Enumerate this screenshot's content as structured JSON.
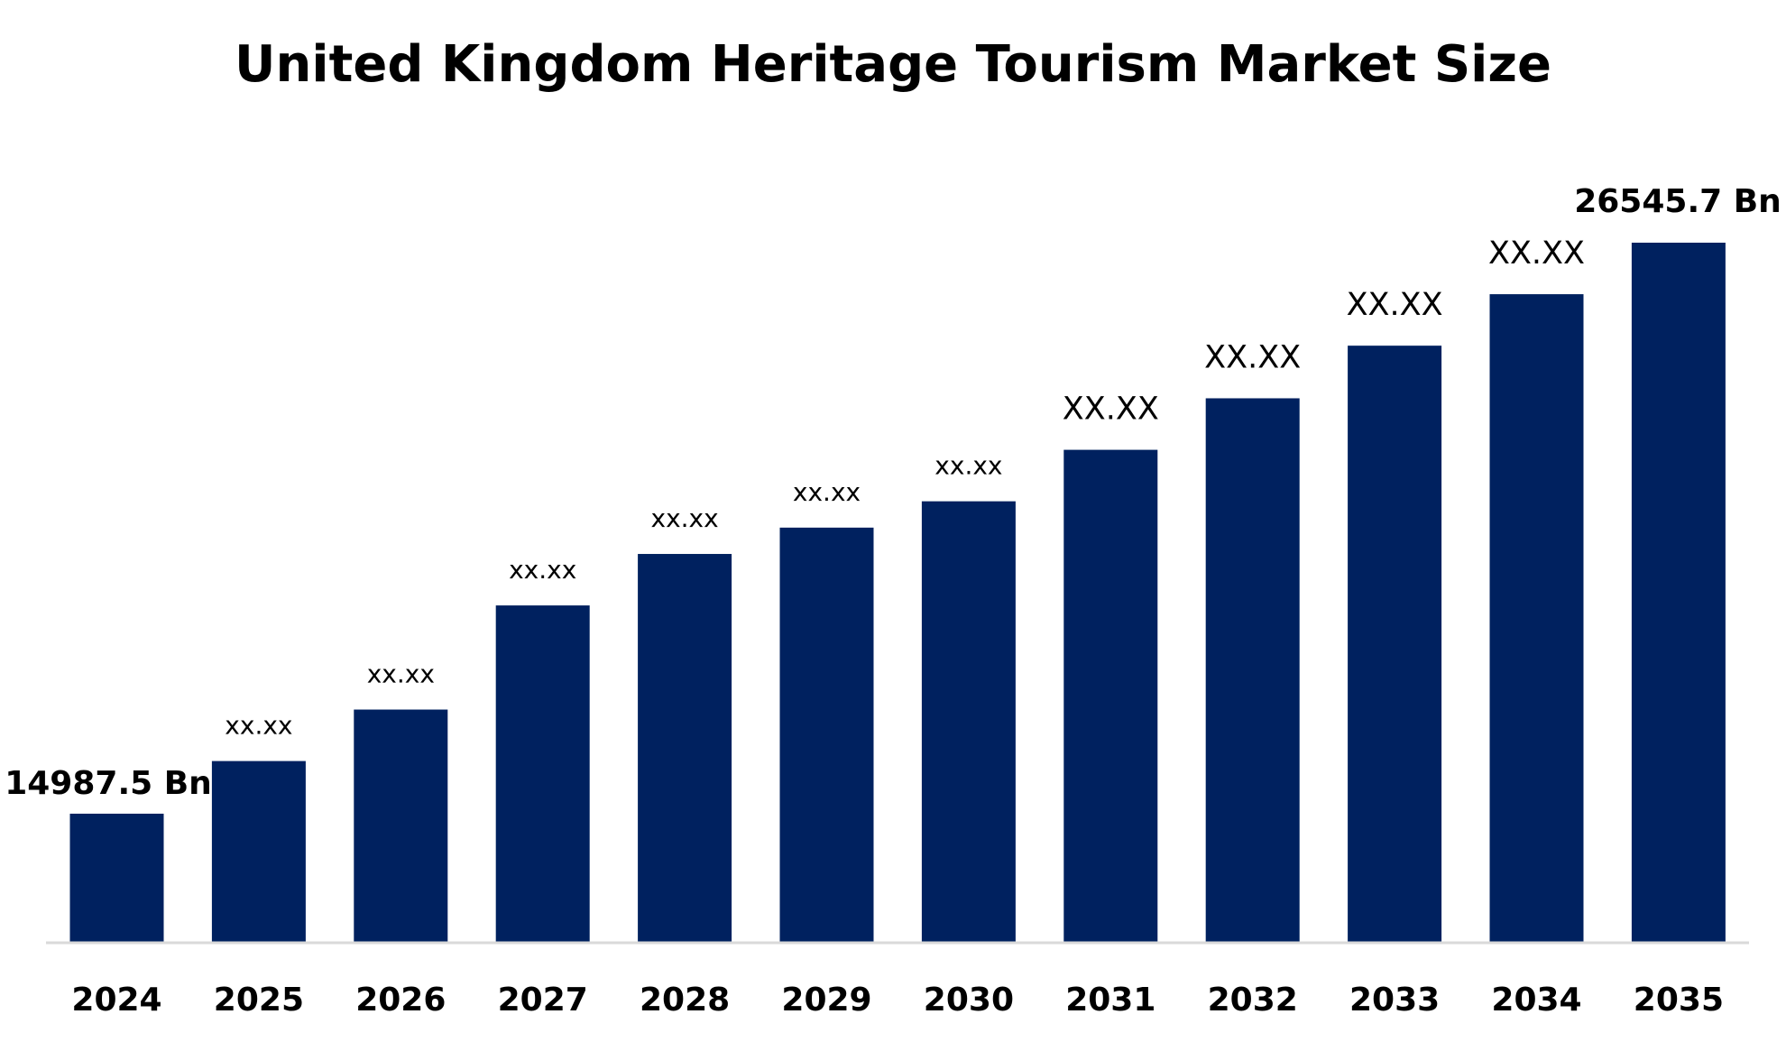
{
  "chart_data": {
    "type": "bar",
    "title": "United Kingdom Heritage Tourism Market Size",
    "xlabel": "",
    "ylabel": "",
    "categories": [
      "2024",
      "2025",
      "2026",
      "2027",
      "2028",
      "2029",
      "2030",
      "2031",
      "2032",
      "2033",
      "2034",
      "2035"
    ],
    "values": [
      14987.5,
      16053,
      17095,
      19203,
      20245,
      20778,
      21311,
      22353,
      23396,
      24461,
      25503,
      26545.7
    ],
    "data_labels": [
      "14987.5 Bn",
      "xx.xx",
      "xx.xx",
      "xx.xx",
      "xx.xx",
      "xx.xx",
      "xx.xx",
      "XX.XX",
      "XX.XX",
      "XX.XX",
      "XX.XX",
      "26545.7 Bn"
    ],
    "ylim": [
      12393,
      26545.7
    ],
    "grid": false,
    "legend": "none",
    "colors": {
      "bar": "#00215F",
      "axis": "#D9D9D9",
      "text": "#000000"
    }
  }
}
